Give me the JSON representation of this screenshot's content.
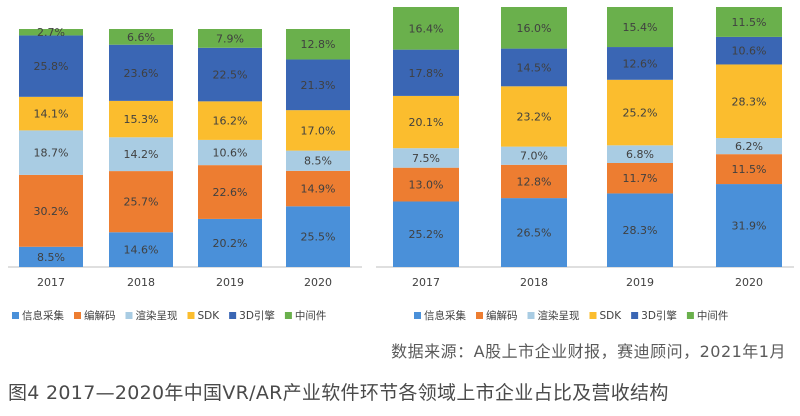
{
  "chart_data": [
    {
      "type": "bar",
      "stacked": true,
      "categories": [
        "2017",
        "2018",
        "2019",
        "2020"
      ],
      "ylim": [
        0,
        100
      ],
      "series": [
        {
          "name": "信息采集",
          "color": "#4a90d9",
          "values": [
            8.5,
            14.6,
            20.2,
            25.5
          ]
        },
        {
          "name": "编解码",
          "color": "#ed7d31",
          "values": [
            30.2,
            25.7,
            22.6,
            14.9
          ]
        },
        {
          "name": "渲染呈现",
          "color": "#a9cce3",
          "values": [
            18.7,
            14.2,
            10.6,
            8.5
          ]
        },
        {
          "name": "SDK",
          "color": "#fbbd2e",
          "values": [
            14.1,
            15.3,
            16.2,
            17.0
          ]
        },
        {
          "name": "3D引擎",
          "color": "#3a66b4",
          "values": [
            25.8,
            23.6,
            22.5,
            21.3
          ]
        },
        {
          "name": "中间件",
          "color": "#6ab04c",
          "values": [
            2.7,
            6.6,
            7.9,
            12.8
          ]
        }
      ],
      "legend_position": "bottom",
      "grid": false
    },
    {
      "type": "bar",
      "stacked": true,
      "categories": [
        "2017",
        "2018",
        "2019",
        "2020"
      ],
      "ylim": [
        0,
        100
      ],
      "series": [
        {
          "name": "信息采集",
          "color": "#4a90d9",
          "values": [
            25.2,
            26.5,
            28.3,
            31.9
          ]
        },
        {
          "name": "编解码",
          "color": "#ed7d31",
          "values": [
            13.0,
            12.8,
            11.7,
            11.5
          ]
        },
        {
          "name": "渲染呈现",
          "color": "#a9cce3",
          "values": [
            7.5,
            7.0,
            6.8,
            6.2
          ]
        },
        {
          "name": "SDK",
          "color": "#fbbd2e",
          "values": [
            20.1,
            23.2,
            25.2,
            28.3
          ]
        },
        {
          "name": "3D引擎",
          "color": "#3a66b4",
          "values": [
            17.8,
            14.5,
            12.6,
            10.6
          ]
        },
        {
          "name": "中间件",
          "color": "#6ab04c",
          "values": [
            16.4,
            16.0,
            15.4,
            11.5
          ]
        }
      ],
      "legend_position": "bottom",
      "grid": false
    }
  ],
  "source": "数据来源：A股上市企业财报，赛迪顾问，2021年1月",
  "caption": "图4  2017—2020年中国VR/AR产业软件环节各领域上市企业占比及营收结构"
}
